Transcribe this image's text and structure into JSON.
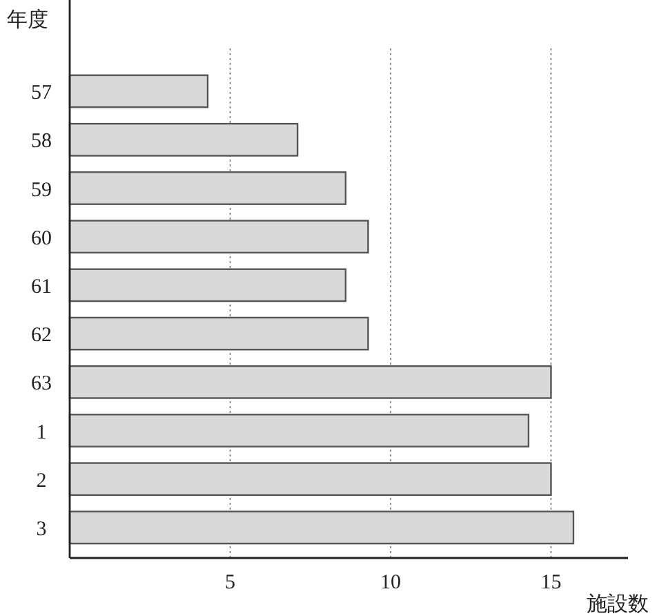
{
  "chart_data": {
    "type": "bar",
    "orientation": "horizontal",
    "ylabel": "年度",
    "xlabel": "施設数",
    "categories": [
      "57",
      "58",
      "59",
      "60",
      "61",
      "62",
      "63",
      "1",
      "2",
      "3"
    ],
    "values": [
      4.3,
      7.1,
      8.6,
      9.3,
      8.6,
      9.3,
      15.0,
      14.3,
      15.0,
      15.7
    ],
    "color": "#d9d9d9",
    "xlim": [
      0,
      17.4
    ],
    "xticks": [
      5,
      10,
      15
    ],
    "grid": "x"
  }
}
